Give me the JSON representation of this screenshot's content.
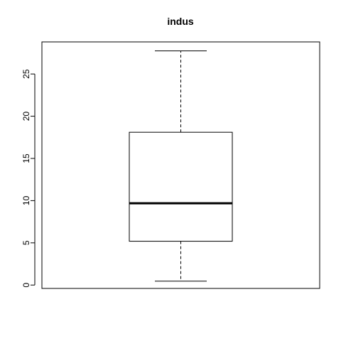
{
  "chart_data": {
    "type": "boxplot",
    "title": "indus",
    "xlabel": "",
    "ylabel": "",
    "ylim": [
      -0.4,
      28.8
    ],
    "y_ticks": [
      0,
      5,
      10,
      15,
      20,
      25
    ],
    "y_tick_labels": [
      "0",
      "5",
      "10",
      "15",
      "20",
      "25"
    ],
    "grid": false,
    "box": {
      "min": 0.46,
      "q1": 5.19,
      "median": 9.69,
      "q3": 18.1,
      "max": 27.74
    },
    "colors": {
      "stroke": "#000000",
      "background": "#ffffff"
    }
  }
}
